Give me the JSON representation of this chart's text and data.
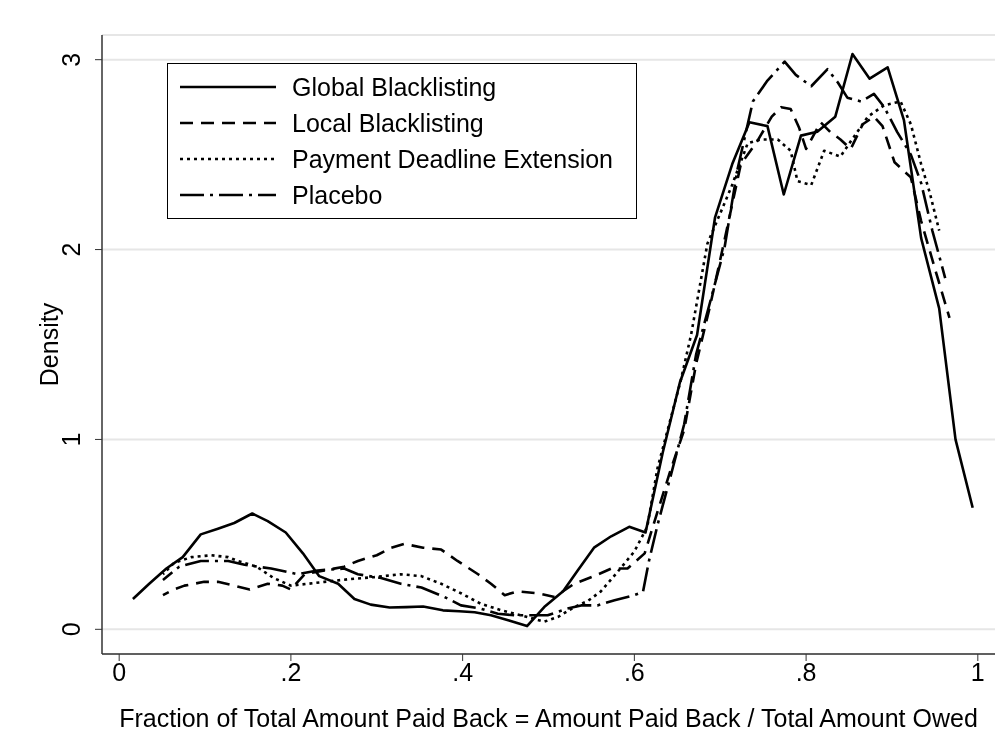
{
  "chart_data": {
    "type": "line",
    "xlabel": "Fraction of Total Amount Paid Back = Amount Paid Back / Total Amount Owed",
    "ylabel": "Density",
    "xlim": [
      -0.02,
      1.02
    ],
    "xticks": [
      0,
      {
        "value": 0.2,
        "label": ".2"
      },
      {
        "value": 0.4,
        "label": ".4"
      },
      {
        "value": 0.6,
        "label": ".6"
      },
      {
        "value": 0.8,
        "label": ".8"
      },
      1
    ],
    "ylim": [
      -0.13,
      3.13
    ],
    "yticks": [
      0,
      1,
      2,
      3
    ],
    "grid": "y",
    "legend": "top left",
    "marker": "none",
    "series": [
      {
        "name": "Global Blacklisting",
        "color": "#000000",
        "line_style": "solid",
        "x": [
          0.016,
          0.035,
          0.055,
          0.074,
          0.095,
          0.115,
          0.134,
          0.155,
          0.173,
          0.194,
          0.214,
          0.233,
          0.255,
          0.274,
          0.293,
          0.315,
          0.334,
          0.354,
          0.377,
          0.396,
          0.414,
          0.433,
          0.454,
          0.475,
          0.495,
          0.517,
          0.534,
          0.553,
          0.573,
          0.594,
          0.613,
          0.633,
          0.653,
          0.673,
          0.694,
          0.714,
          0.734,
          0.755,
          0.774,
          0.794,
          0.813,
          0.834,
          0.854,
          0.874,
          0.895,
          0.914,
          0.934,
          0.955,
          0.974,
          0.994
        ],
        "values": [
          0.16,
          0.24,
          0.32,
          0.38,
          0.5,
          0.53,
          0.56,
          0.61,
          0.57,
          0.51,
          0.4,
          0.28,
          0.24,
          0.16,
          0.13,
          0.115,
          0.117,
          0.12,
          0.1,
          0.095,
          0.09,
          0.074,
          0.047,
          0.017,
          0.117,
          0.2,
          0.31,
          0.43,
          0.49,
          0.54,
          0.51,
          0.93,
          1.3,
          1.55,
          2.17,
          2.45,
          2.67,
          2.65,
          2.29,
          2.6,
          2.62,
          2.7,
          3.03,
          2.9,
          2.96,
          2.68,
          2.06,
          1.69,
          1.0,
          0.64
        ]
      },
      {
        "name": "Local Blacklisting",
        "color": "#000000",
        "line_style": "dashed",
        "x": [
          0.051,
          0.064,
          0.076,
          0.099,
          0.115,
          0.134,
          0.152,
          0.173,
          0.19,
          0.2,
          0.216,
          0.239,
          0.262,
          0.278,
          0.3,
          0.317,
          0.332,
          0.354,
          0.375,
          0.394,
          0.418,
          0.433,
          0.449,
          0.464,
          0.487,
          0.507,
          0.53,
          0.553,
          0.573,
          0.592,
          0.612,
          0.627,
          0.643,
          0.658,
          0.672,
          0.688,
          0.705,
          0.724,
          0.743,
          0.76,
          0.771,
          0.782,
          0.792,
          0.8,
          0.817,
          0.828,
          0.84,
          0.852,
          0.866,
          0.879,
          0.889,
          0.903,
          0.922,
          0.934,
          0.95,
          0.967
        ],
        "values": [
          0.18,
          0.21,
          0.23,
          0.25,
          0.25,
          0.23,
          0.21,
          0.24,
          0.23,
          0.21,
          0.29,
          0.31,
          0.33,
          0.36,
          0.39,
          0.43,
          0.45,
          0.43,
          0.42,
          0.36,
          0.29,
          0.24,
          0.18,
          0.2,
          0.19,
          0.17,
          0.24,
          0.28,
          0.32,
          0.32,
          0.4,
          0.62,
          0.85,
          1.05,
          1.4,
          1.7,
          2.05,
          2.45,
          2.57,
          2.7,
          2.75,
          2.74,
          2.64,
          2.53,
          2.67,
          2.62,
          2.58,
          2.53,
          2.66,
          2.7,
          2.65,
          2.46,
          2.38,
          2.15,
          1.9,
          1.64
        ]
      },
      {
        "name": "Payment Deadline Extension",
        "color": "#000000",
        "line_style": "dotted",
        "x": [
          0.051,
          0.064,
          0.084,
          0.107,
          0.127,
          0.138,
          0.16,
          0.18,
          0.2,
          0.22,
          0.239,
          0.27,
          0.297,
          0.328,
          0.352,
          0.375,
          0.398,
          0.421,
          0.445,
          0.468,
          0.495,
          0.511,
          0.53,
          0.546,
          0.561,
          0.58,
          0.6,
          0.615,
          0.627,
          0.654,
          0.666,
          0.685,
          0.713,
          0.732,
          0.747,
          0.767,
          0.782,
          0.79,
          0.806,
          0.821,
          0.84,
          0.852,
          0.872,
          0.891,
          0.91,
          0.922,
          0.934,
          0.944,
          0.955
        ],
        "values": [
          0.29,
          0.35,
          0.38,
          0.39,
          0.38,
          0.36,
          0.33,
          0.27,
          0.23,
          0.24,
          0.25,
          0.265,
          0.275,
          0.29,
          0.28,
          0.24,
          0.19,
          0.135,
          0.1,
          0.074,
          0.04,
          0.065,
          0.117,
          0.15,
          0.2,
          0.3,
          0.41,
          0.54,
          0.85,
          1.31,
          1.55,
          2.03,
          2.33,
          2.56,
          2.58,
          2.58,
          2.52,
          2.36,
          2.34,
          2.52,
          2.49,
          2.57,
          2.7,
          2.76,
          2.78,
          2.66,
          2.45,
          2.3,
          2.1
        ]
      },
      {
        "name": "Placebo",
        "color": "#000000",
        "line_style": "dashdot",
        "x": [
          0.051,
          0.07,
          0.095,
          0.127,
          0.146,
          0.177,
          0.208,
          0.231,
          0.262,
          0.278,
          0.305,
          0.328,
          0.352,
          0.379,
          0.398,
          0.421,
          0.441,
          0.46,
          0.48,
          0.499,
          0.522,
          0.538,
          0.557,
          0.577,
          0.6,
          0.61,
          0.617,
          0.627,
          0.643,
          0.658,
          0.672,
          0.688,
          0.705,
          0.72,
          0.738,
          0.755,
          0.775,
          0.788,
          0.806,
          0.825,
          0.837,
          0.848,
          0.864,
          0.879,
          0.891,
          0.906,
          0.922,
          0.934,
          0.947,
          0.962
        ],
        "values": [
          0.26,
          0.33,
          0.36,
          0.36,
          0.34,
          0.32,
          0.29,
          0.31,
          0.32,
          0.29,
          0.27,
          0.24,
          0.22,
          0.17,
          0.126,
          0.109,
          0.082,
          0.074,
          0.074,
          0.074,
          0.109,
          0.126,
          0.126,
          0.153,
          0.18,
          0.196,
          0.36,
          0.55,
          0.82,
          1.08,
          1.45,
          1.72,
          2.01,
          2.42,
          2.78,
          2.89,
          2.99,
          2.92,
          2.86,
          2.95,
          2.88,
          2.8,
          2.78,
          2.82,
          2.75,
          2.62,
          2.5,
          2.35,
          2.1,
          1.85
        ]
      }
    ]
  }
}
